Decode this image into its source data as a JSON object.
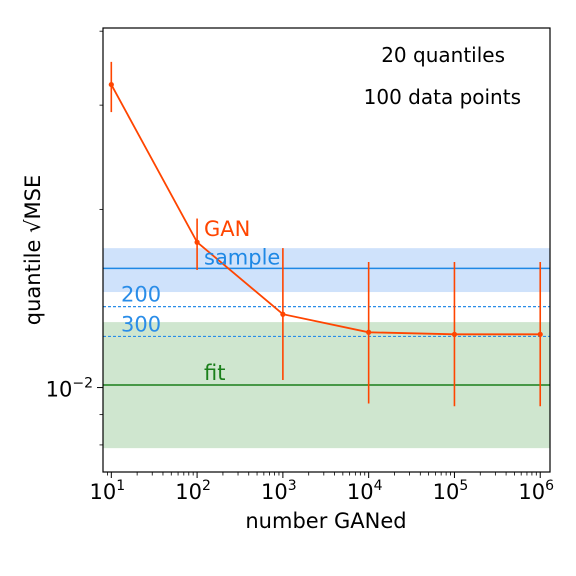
{
  "colors": {
    "gan": "#ff4500",
    "sample": "#1e88e5",
    "sample_band": "#cfe2fb",
    "fit": "#1a7f1a",
    "fit_band": "#cfe6cf",
    "ref_lines": "#2a8de8",
    "axes": "#000000"
  },
  "chart_data": {
    "type": "line",
    "xscale": "log",
    "yscale": "log",
    "xlabel": "number GANed",
    "ylabel": "quantile √MSE",
    "xlim": [
      8,
      1300000
    ],
    "ylim": [
      0.0072,
      0.0405
    ],
    "xticks": [
      {
        "value": 10,
        "base": "10",
        "exp": "1"
      },
      {
        "value": 100,
        "base": "10",
        "exp": "2"
      },
      {
        "value": 1000,
        "base": "10",
        "exp": "3"
      },
      {
        "value": 10000,
        "base": "10",
        "exp": "4"
      },
      {
        "value": 100000,
        "base": "10",
        "exp": "5"
      },
      {
        "value": 1000000,
        "base": "10",
        "exp": "6"
      }
    ],
    "yticks": [
      {
        "value": 0.01,
        "base": "10",
        "exp": "−2"
      }
    ],
    "series": [
      {
        "name": "GAN",
        "x": [
          10,
          100,
          1000,
          10000,
          100000,
          1000000
        ],
        "y": [
          0.0325,
          0.0176,
          0.0133,
          0.0124,
          0.0123,
          0.0123
        ],
        "yerr_low": [
          0.0292,
          0.0158,
          0.0103,
          0.0094,
          0.0093,
          0.0093
        ],
        "yerr_high": [
          0.0355,
          0.0193,
          0.0172,
          0.0163,
          0.0163,
          0.0163
        ]
      }
    ],
    "reference_bands": [
      {
        "name": "sample",
        "y": 0.0159,
        "low": 0.0145,
        "high": 0.0172
      },
      {
        "name": "fit",
        "y": 0.0101,
        "low": 0.0079,
        "high": 0.0129
      }
    ],
    "reference_lines": [
      {
        "name": "200",
        "y": 0.0137
      },
      {
        "name": "300",
        "y": 0.0122
      }
    ],
    "annotations": [
      "20 quantiles",
      "100 data points"
    ]
  }
}
